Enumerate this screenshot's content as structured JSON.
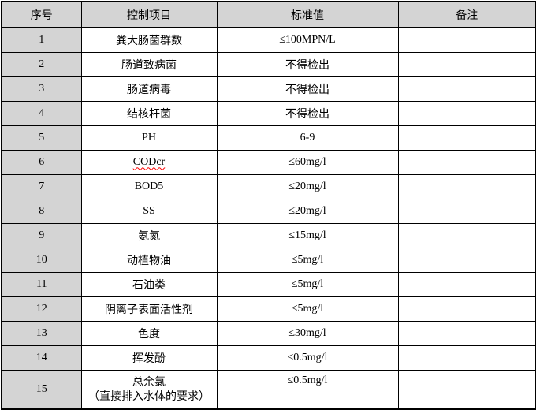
{
  "table": {
    "headers": [
      {
        "label": "序号"
      },
      {
        "label": "控制项目"
      },
      {
        "label": "标准值"
      },
      {
        "label": "备注"
      }
    ],
    "rows": [
      {
        "no": "1",
        "item": "粪大肠菌群数",
        "value": "≤100MPN/L",
        "remark": ""
      },
      {
        "no": "2",
        "item": "肠道致病菌",
        "value": "不得检出",
        "remark": ""
      },
      {
        "no": "3",
        "item": "肠道病毒",
        "value": "不得检出",
        "remark": ""
      },
      {
        "no": "4",
        "item": "结核杆菌",
        "value": "不得检出",
        "remark": ""
      },
      {
        "no": "5",
        "item": "PH",
        "value": "6-9",
        "remark": ""
      },
      {
        "no": "6",
        "item": "CODcr",
        "value": "≤60mg/l",
        "remark": "",
        "spellcheck_underline": true
      },
      {
        "no": "7",
        "item": "BOD5",
        "value": "≤20mg/l",
        "remark": ""
      },
      {
        "no": "8",
        "item": "SS",
        "value": "≤20mg/l",
        "remark": ""
      },
      {
        "no": "9",
        "item": "氨氮",
        "value": "≤15mg/l",
        "remark": ""
      },
      {
        "no": "10",
        "item": "动植物油",
        "value": "≤5mg/l",
        "remark": ""
      },
      {
        "no": "11",
        "item": "石油类",
        "value": "≤5mg/l",
        "remark": ""
      },
      {
        "no": "12",
        "item": "阴离子表面活性剂",
        "value": "≤5mg/l",
        "remark": ""
      },
      {
        "no": "13",
        "item": "色度",
        "value": "≤30mg/l",
        "remark": ""
      },
      {
        "no": "14",
        "item": "挥发酚",
        "value": "≤0.5mg/l",
        "remark": ""
      },
      {
        "no": "15",
        "item": "总余氯",
        "item_line2": "（直接排入水体的要求）",
        "value": "≤0.5mg/l",
        "remark": ""
      }
    ],
    "colors": {
      "header_bg": "#d4d4d4",
      "index_col_bg": "#d4d4d4",
      "border": "#000000",
      "spell_underline": "#ff0000"
    }
  }
}
